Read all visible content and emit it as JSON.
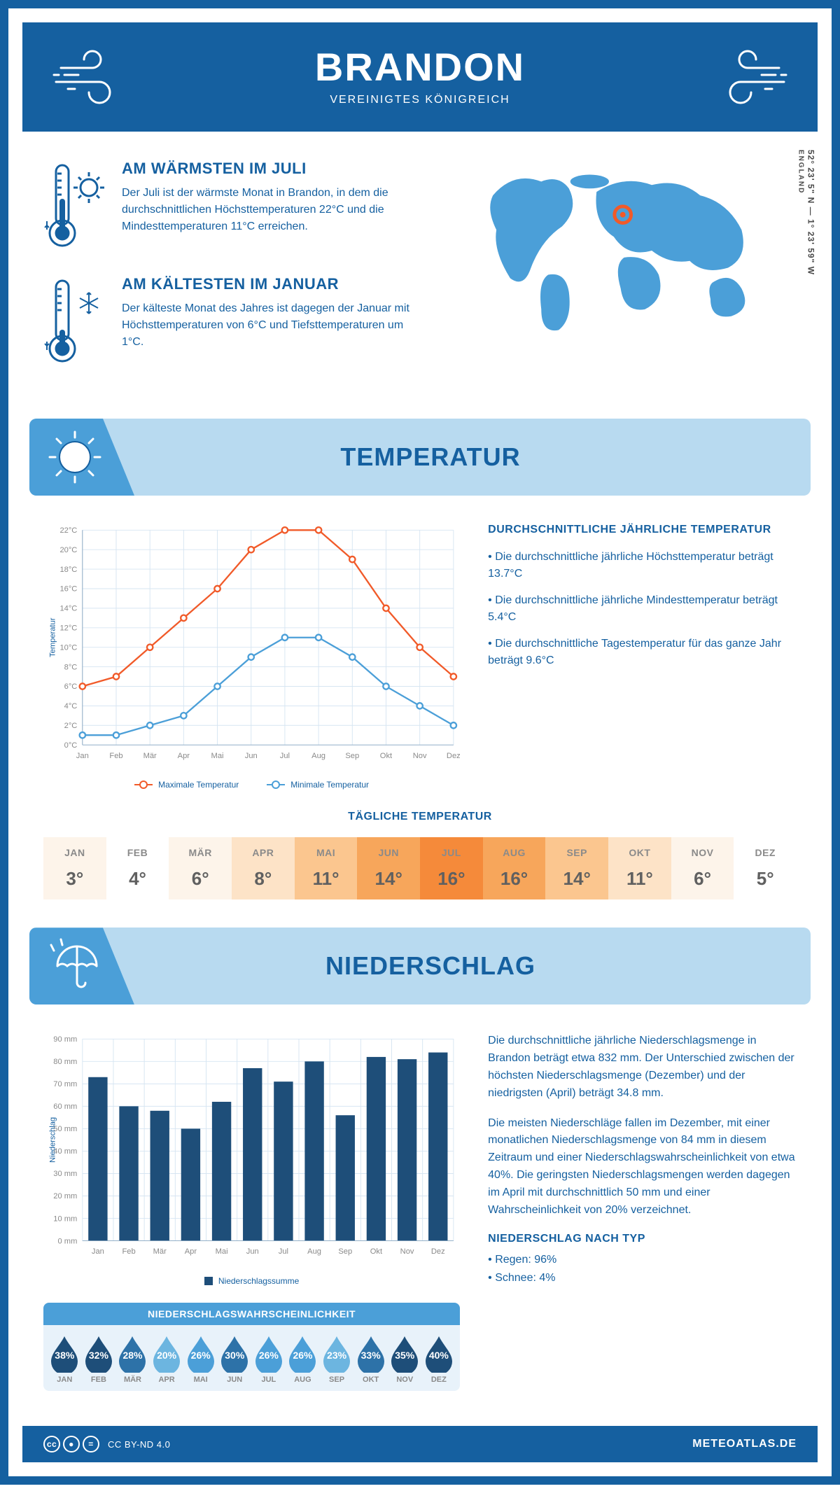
{
  "header": {
    "title": "BRANDON",
    "subtitle": "VEREINIGTES KÖNIGREICH"
  },
  "coords": {
    "lat": "52° 23' 5\" N — 1° 23' 59\" W",
    "region": "ENGLAND"
  },
  "intro": {
    "warm": {
      "title": "AM WÄRMSTEN IM JULI",
      "text": "Der Juli ist der wärmste Monat in Brandon, in dem die durchschnittlichen Höchsttemperaturen 22°C und die Mindesttemperaturen 11°C erreichen."
    },
    "cold": {
      "title": "AM KÄLTESTEN IM JANUAR",
      "text": "Der kälteste Monat des Jahres ist dagegen der Januar mit Höchsttemperaturen von 6°C und Tiefsttemperaturen um 1°C."
    }
  },
  "colors": {
    "brand": "#1560a0",
    "brandLight": "#4b9fd8",
    "banner": "#b8daf0",
    "maxLine": "#f15a29",
    "minLine": "#4b9fd8",
    "barFill": "#1e4e79",
    "grid": "#d6e5f2",
    "tick": "#8a8a8a"
  },
  "temperature": {
    "banner": "TEMPERATUR",
    "chart": {
      "type": "line",
      "months": [
        "Jan",
        "Feb",
        "Mär",
        "Apr",
        "Mai",
        "Jun",
        "Jul",
        "Aug",
        "Sep",
        "Okt",
        "Nov",
        "Dez"
      ],
      "max": [
        6,
        7,
        10,
        13,
        16,
        20,
        22,
        22,
        19,
        14,
        10,
        7
      ],
      "min": [
        1,
        1,
        2,
        3,
        6,
        9,
        11,
        11,
        9,
        6,
        4,
        2
      ],
      "ylim": [
        0,
        22
      ],
      "ytick_step": 2,
      "ylabel": "Temperatur",
      "legend_max": "Maximale Temperatur",
      "legend_min": "Minimale Temperatur"
    },
    "avg": {
      "title": "DURCHSCHNITTLICHE JÄHRLICHE TEMPERATUR",
      "b1": "• Die durchschnittliche jährliche Höchsttemperatur beträgt 13.7°C",
      "b2": "• Die durchschnittliche jährliche Mindesttemperatur beträgt 5.4°C",
      "b3": "• Die durchschnittliche Tagestemperatur für das ganze Jahr beträgt 9.6°C"
    },
    "daily": {
      "title": "TÄGLICHE TEMPERATUR",
      "months": [
        "JAN",
        "FEB",
        "MÄR",
        "APR",
        "MAI",
        "JUN",
        "JUL",
        "AUG",
        "SEP",
        "OKT",
        "NOV",
        "DEZ"
      ],
      "values": [
        "3°",
        "4°",
        "6°",
        "8°",
        "11°",
        "14°",
        "16°",
        "16°",
        "14°",
        "11°",
        "6°",
        "5°"
      ],
      "bg_colors": [
        "#fdf4ea",
        "#ffffff",
        "#fdf4ea",
        "#fde3c7",
        "#fbc68f",
        "#f7a65b",
        "#f58a3a",
        "#f7a65b",
        "#fbc68f",
        "#fde3c7",
        "#fdf4ea",
        "#ffffff"
      ]
    }
  },
  "precip": {
    "banner": "NIEDERSCHLAG",
    "chart": {
      "type": "bar",
      "months": [
        "Jan",
        "Feb",
        "Mär",
        "Apr",
        "Mai",
        "Jun",
        "Jul",
        "Aug",
        "Sep",
        "Okt",
        "Nov",
        "Dez"
      ],
      "values": [
        73,
        60,
        58,
        50,
        62,
        77,
        71,
        80,
        56,
        82,
        81,
        84
      ],
      "ylim": [
        0,
        90
      ],
      "ytick_step": 10,
      "ylabel": "Niederschlag",
      "legend": "Niederschlagssumme"
    },
    "text1": "Die durchschnittliche jährliche Niederschlagsmenge in Brandon beträgt etwa 832 mm. Der Unterschied zwischen der höchsten Niederschlagsmenge (Dezember) und der niedrigsten (April) beträgt 34.8 mm.",
    "text2": "Die meisten Niederschläge fallen im Dezember, mit einer monatlichen Niederschlagsmenge von 84 mm in diesem Zeitraum und einer Niederschlagswahrscheinlichkeit von etwa 40%. Die geringsten Niederschlagsmengen werden dagegen im April mit durchschnittlich 50 mm und einer Wahrscheinlichkeit von 20% verzeichnet.",
    "byType": {
      "title": "NIEDERSCHLAG NACH TYP",
      "rain": "• Regen: 96%",
      "snow": "• Schnee: 4%"
    },
    "prob": {
      "title": "NIEDERSCHLAGSWAHRSCHEINLICHKEIT",
      "months": [
        "JAN",
        "FEB",
        "MÄR",
        "APR",
        "MAI",
        "JUN",
        "JUL",
        "AUG",
        "SEP",
        "OKT",
        "NOV",
        "DEZ"
      ],
      "values": [
        "38%",
        "32%",
        "28%",
        "20%",
        "26%",
        "30%",
        "26%",
        "26%",
        "23%",
        "33%",
        "35%",
        "40%"
      ],
      "colors": [
        "#1e4e79",
        "#1e4e79",
        "#2d72a8",
        "#6cb5e0",
        "#4b9fd8",
        "#2d72a8",
        "#4b9fd8",
        "#4b9fd8",
        "#6cb5e0",
        "#2d72a8",
        "#1e4e79",
        "#1e4e79"
      ]
    }
  },
  "footer": {
    "license": "CC BY-ND 4.0",
    "site": "METEOATLAS.DE"
  }
}
